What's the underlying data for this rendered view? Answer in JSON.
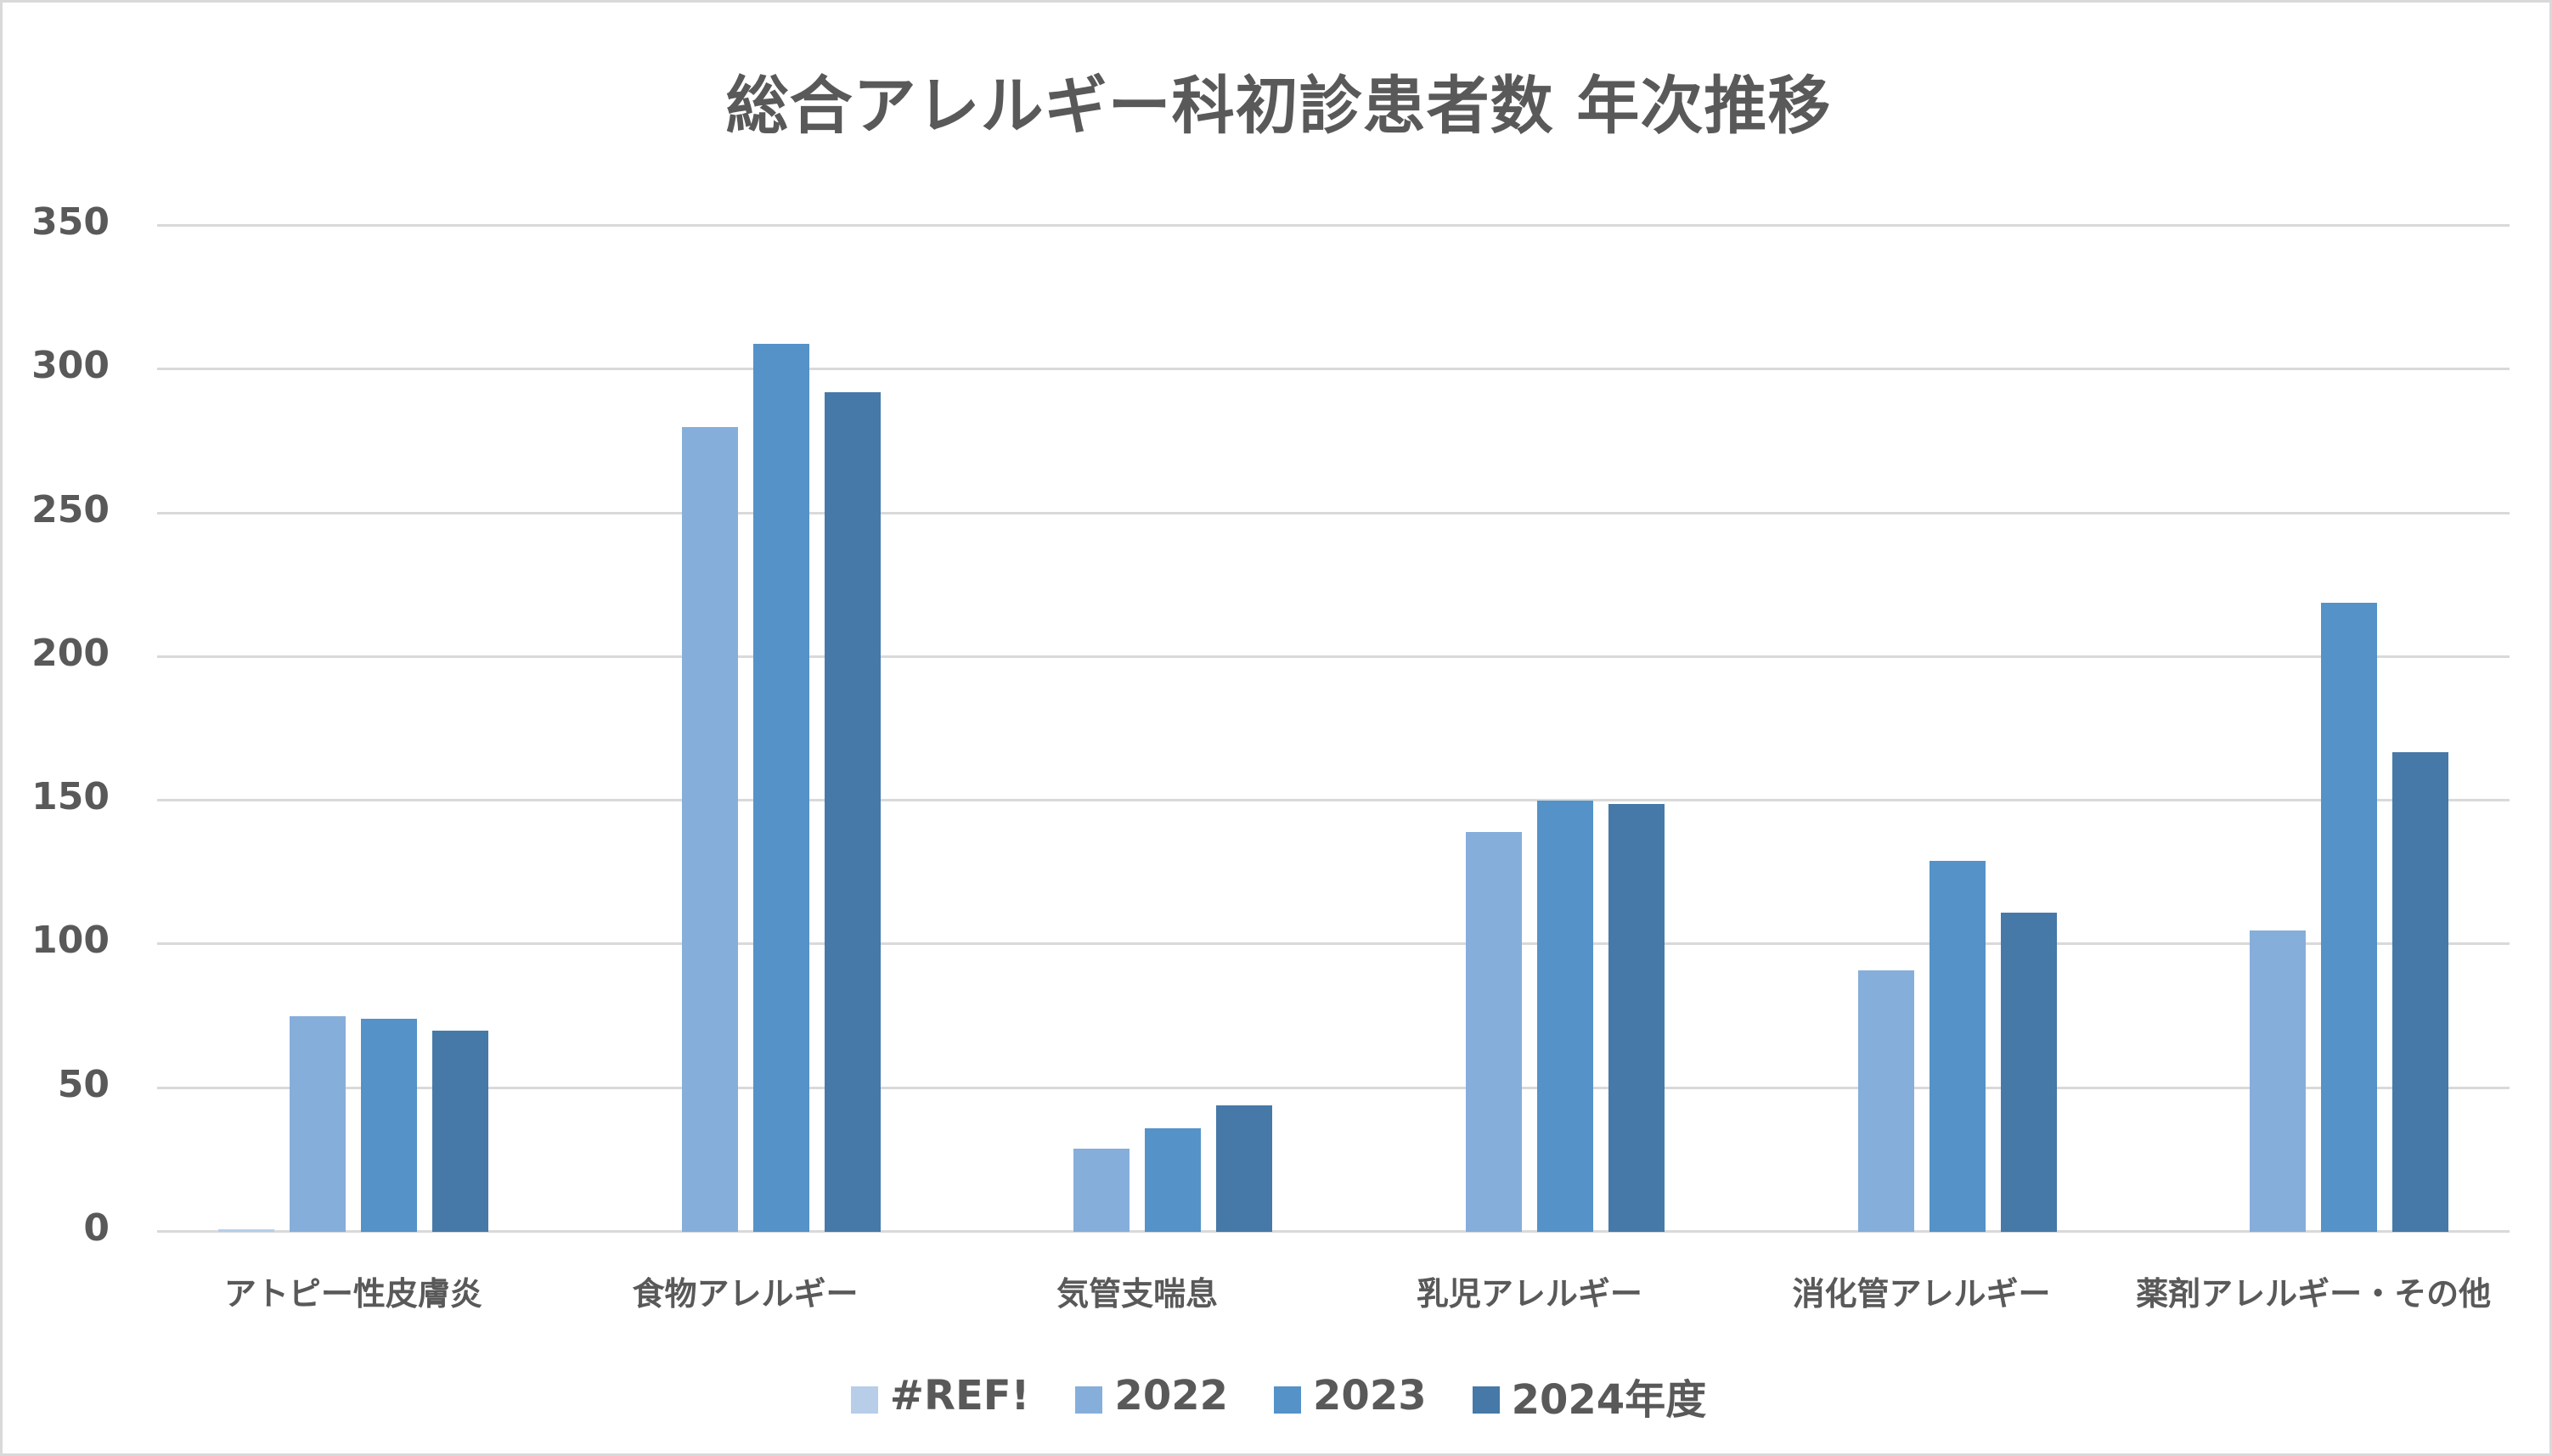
{
  "chart_data": {
    "type": "bar",
    "title": "総合アレルギー科初診患者数 年次推移",
    "xlabel": "",
    "ylabel": "",
    "ylim": [
      0,
      350
    ],
    "yticks": [
      0,
      50,
      100,
      150,
      200,
      250,
      300,
      350
    ],
    "grid": true,
    "legend_position": "bottom",
    "categories": [
      "アトピー性皮膚炎",
      "食物アレルギー",
      "気管支喘息",
      "乳児アレルギー",
      "消化管アレルギー",
      "薬剤アレルギー・その他"
    ],
    "series": [
      {
        "name": "#REF!",
        "color": "#B7CDE8",
        "values": [
          1,
          0,
          0,
          0,
          0,
          0
        ]
      },
      {
        "name": "2022",
        "color": "#86AEDB",
        "values": [
          75,
          280,
          29,
          139,
          91,
          105
        ]
      },
      {
        "name": "2023",
        "color": "#5592C8",
        "values": [
          74,
          309,
          36,
          150,
          129,
          219
        ]
      },
      {
        "name": "2024年度",
        "color": "#4679A8",
        "values": [
          70,
          292,
          44,
          149,
          111,
          167
        ]
      }
    ]
  },
  "colors": {
    "text": "#595959",
    "grid": "#D9D9D9",
    "border": "#D9D9D9",
    "background": "#FFFFFF"
  }
}
